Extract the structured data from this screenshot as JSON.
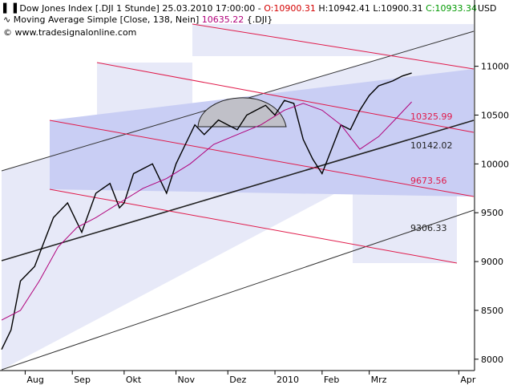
{
  "header": {
    "line1_prefix": "Dow Jones Index [.DJI  1 Stunde] 25.03.2010 17:00:00 - ",
    "open": "O:10900.31",
    "high": " H:10942.41",
    "low": " L:10900.31",
    "close": " C:10933.34",
    "line2_prefix": "Moving Average Simple [Close, 138, Nein] ",
    "ma_value": "10635.22",
    "line2_suffix": " {.DJI}",
    "line3": "www.tradesignalonline.com",
    "currency": "USD"
  },
  "colors": {
    "open": "#d40000",
    "close": "#009900",
    "ma": "#b0007a",
    "red_channel": "#e01a4a",
    "black_line": "#222222",
    "fill_light": "#e6e8f8",
    "fill_dark": "#c9cef4"
  },
  "level_labels": [
    {
      "value": "10325.99",
      "color": "#e01a4a"
    },
    {
      "value": "10142.02",
      "color": "#222222"
    },
    {
      "value": "9673.56",
      "color": "#e01a4a"
    },
    {
      "value": "9306.33",
      "color": "#222222"
    }
  ],
  "chart_data": {
    "type": "line",
    "y_ticks": [
      "11000",
      "10500",
      "10000",
      "9500",
      "9000",
      "8500",
      "8000"
    ],
    "y_tick_values": [
      11000,
      10500,
      10000,
      9500,
      9000,
      8500,
      8000
    ],
    "x_ticks": [
      "Aug",
      "Sep",
      "Okt",
      "Nov",
      "Dez",
      "2010",
      "Feb",
      "Mrz",
      "Apr"
    ],
    "x_tick_values": [
      0.05,
      0.15,
      0.26,
      0.37,
      0.48,
      0.58,
      0.68,
      0.78,
      0.97
    ],
    "ylim": [
      7900,
      11350
    ],
    "series": [
      {
        "name": "Dow Jones Index [.DJI  1 Stunde]",
        "t": [
          0.0,
          0.02,
          0.04,
          0.07,
          0.09,
          0.11,
          0.14,
          0.16,
          0.17,
          0.2,
          0.23,
          0.25,
          0.26,
          0.28,
          0.3,
          0.32,
          0.34,
          0.35,
          0.37,
          0.39,
          0.41,
          0.43,
          0.46,
          0.48,
          0.5,
          0.52,
          0.54,
          0.56,
          0.58,
          0.6,
          0.62,
          0.64,
          0.66,
          0.68,
          0.7,
          0.72,
          0.74,
          0.76,
          0.78,
          0.8,
          0.83,
          0.85,
          0.87
        ],
        "values": [
          8100,
          8300,
          8800,
          8950,
          9200,
          9450,
          9600,
          9400,
          9300,
          9700,
          9800,
          9550,
          9600,
          9900,
          9950,
          10000,
          9800,
          9700,
          10000,
          10200,
          10400,
          10300,
          10450,
          10400,
          10350,
          10500,
          10550,
          10600,
          10500,
          10650,
          10620,
          10250,
          10050,
          9900,
          10150,
          10400,
          10350,
          10550,
          10700,
          10800,
          10850,
          10900,
          10930
        ]
      },
      {
        "name": "Moving Average Simple [Close, 138, Nein]",
        "t": [
          0.0,
          0.04,
          0.08,
          0.12,
          0.16,
          0.2,
          0.25,
          0.3,
          0.35,
          0.4,
          0.45,
          0.5,
          0.55,
          0.6,
          0.64,
          0.68,
          0.72,
          0.76,
          0.8,
          0.84,
          0.87
        ],
        "values": [
          8400,
          8500,
          8800,
          9150,
          9350,
          9450,
          9600,
          9750,
          9850,
          10000,
          10200,
          10300,
          10400,
          10550,
          10620,
          10550,
          10400,
          10150,
          10280,
          10480,
          10635
        ]
      }
    ]
  }
}
